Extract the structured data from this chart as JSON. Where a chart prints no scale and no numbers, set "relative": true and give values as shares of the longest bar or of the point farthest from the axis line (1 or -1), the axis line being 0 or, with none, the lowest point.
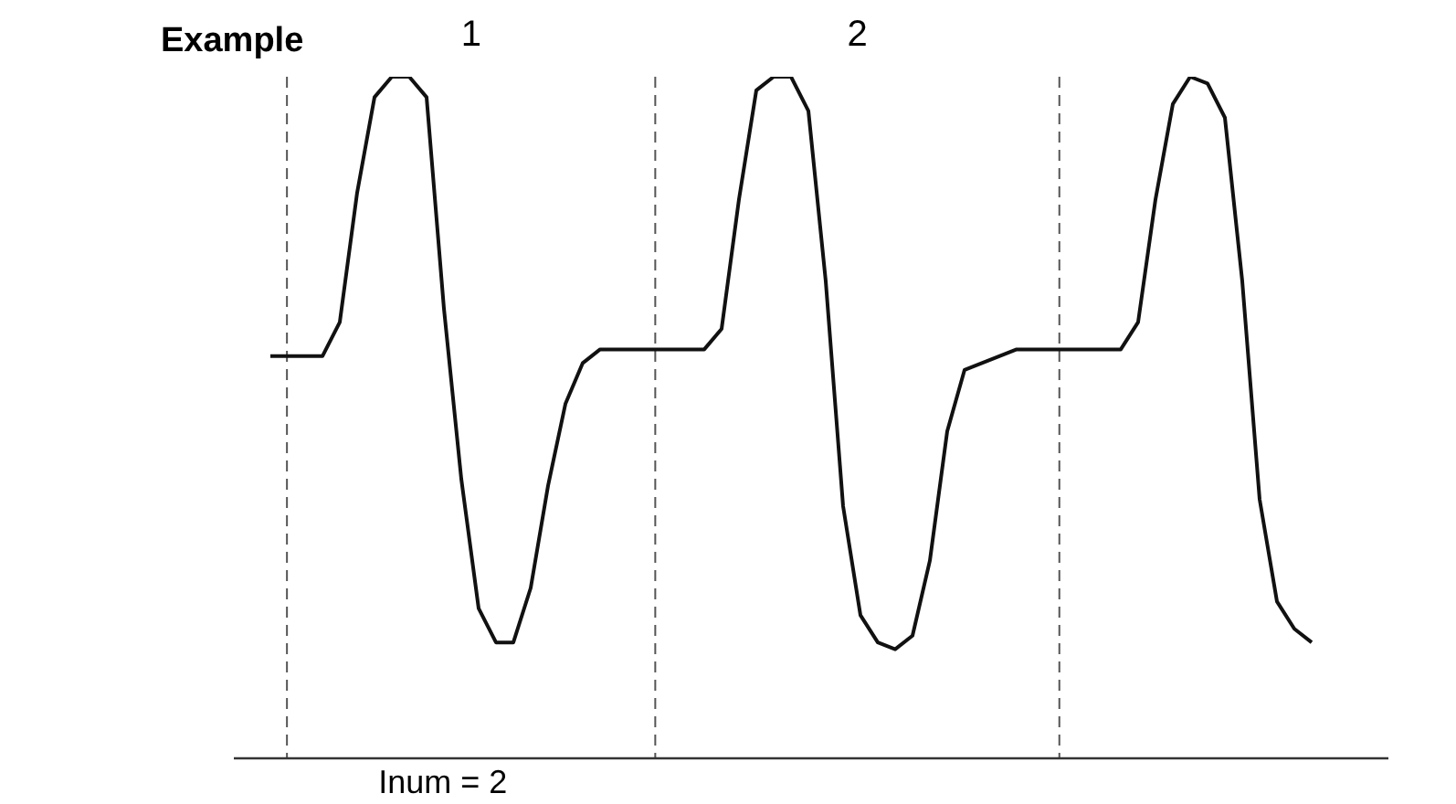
{
  "chart_data": {
    "type": "line",
    "title": "Example",
    "relative": true,
    "marker": "none",
    "line_style": "solid",
    "categories": [
      null,
      null,
      null,
      null,
      null,
      null,
      null,
      null,
      null,
      null,
      null,
      null,
      null,
      null,
      null,
      null,
      null,
      null,
      null,
      null,
      null,
      null,
      null,
      null,
      null,
      null,
      null,
      null,
      null,
      null,
      null,
      null,
      null,
      null,
      null,
      null,
      null,
      null,
      null,
      null,
      null,
      null,
      null,
      null,
      null,
      null,
      null,
      null,
      null,
      null,
      null,
      null,
      null,
      null,
      null,
      null,
      null,
      null,
      null,
      null,
      null
    ],
    "series": [
      {
        "color": "#111111",
        "values": [
          0.59,
          0.59,
          0.59,
          0.59,
          0.64,
          0.83,
          0.97,
          1,
          1,
          0.97,
          0.66,
          0.41,
          0.22,
          0.17,
          0.17,
          0.25,
          0.4,
          0.52,
          0.58,
          0.6,
          0.6,
          0.6,
          0.6,
          0.6,
          0.6,
          0.6,
          0.63,
          0.82,
          0.98,
          1,
          1,
          0.95,
          0.7,
          0.37,
          0.21,
          0.17,
          0.16,
          0.18,
          0.29,
          0.48,
          0.57,
          0.58,
          0.59,
          0.6,
          0.6,
          0.6,
          0.6,
          0.6,
          0.6,
          0.6,
          0.64,
          0.82,
          0.96,
          1,
          0.99,
          0.94,
          0.7,
          0.38,
          0.23,
          0.19,
          0.17
        ]
      }
    ],
    "grid": "x",
    "annotations": [
      "1",
      "2",
      "Inum = 2"
    ]
  }
}
